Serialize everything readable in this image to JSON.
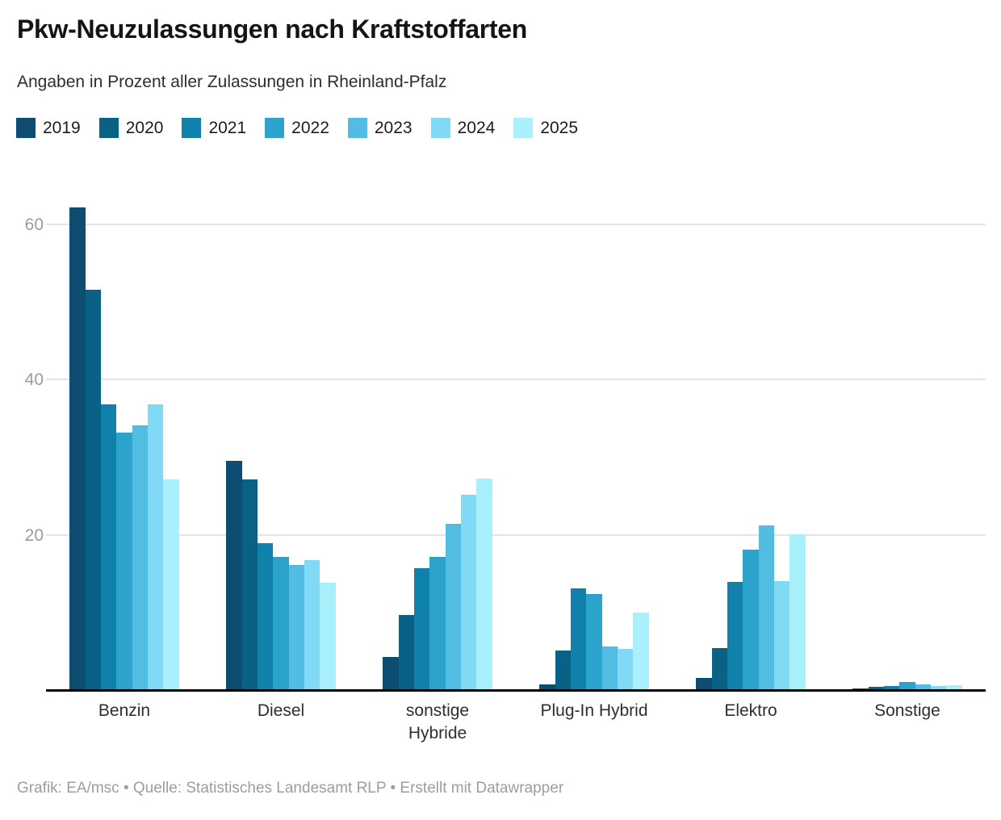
{
  "header": {
    "title": "Pkw-Neuzulassungen nach Kraftstoffarten",
    "subtitle": "Angaben in Prozent aller Zulassungen in Rheinland-Pfalz"
  },
  "chart_data": {
    "type": "bar",
    "title": "Pkw-Neuzulassungen nach Kraftstoffarten",
    "subtitle": "Angaben in Prozent aller Zulassungen in Rheinland-Pfalz",
    "categories": [
      "Benzin",
      "Diesel",
      "sonstige\nHybride",
      "Plug-In Hybrid",
      "Elektro",
      "Sonstige"
    ],
    "series": [
      {
        "name": "2019",
        "color": "#0e4d72",
        "values": [
          62.3,
          29.6,
          4.4,
          0.8,
          1.7,
          0.3
        ]
      },
      {
        "name": "2020",
        "color": "#096285",
        "values": [
          51.7,
          27.2,
          9.8,
          5.2,
          5.5,
          0.5
        ]
      },
      {
        "name": "2021",
        "color": "#0f81ab",
        "values": [
          36.9,
          19.0,
          15.8,
          13.2,
          14.0,
          0.6
        ]
      },
      {
        "name": "2022",
        "color": "#2ba3cc",
        "values": [
          33.3,
          17.3,
          17.3,
          12.5,
          18.2,
          1.1
        ]
      },
      {
        "name": "2023",
        "color": "#52bce3",
        "values": [
          34.2,
          16.2,
          21.5,
          5.7,
          21.3,
          0.8
        ]
      },
      {
        "name": "2024",
        "color": "#80daf5",
        "values": [
          36.9,
          16.9,
          25.3,
          5.4,
          14.1,
          0.6
        ]
      },
      {
        "name": "2025",
        "color": "#a8f0fc",
        "values": [
          27.2,
          13.9,
          27.4,
          10.1,
          20.2,
          0.7
        ]
      }
    ],
    "y_ticks": [
      20,
      40,
      60
    ],
    "ylim": [
      0,
      65.1
    ],
    "ylabel": "",
    "xlabel": "",
    "grid": true,
    "legend_position": "top"
  },
  "footer": {
    "credit": "Grafik: EA/msc • Quelle: Statistisches Landesamt RLP • Erstellt mit Datawrapper"
  }
}
